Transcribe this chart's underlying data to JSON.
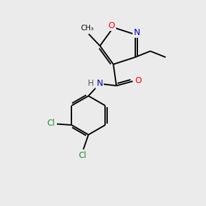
{
  "background_color": "#ebebeb",
  "bond_color": "#000000",
  "atom_colors": {
    "O": "#ff0000",
    "N": "#0000cc",
    "Cl": "#228b22",
    "C": "#000000",
    "H": "#555555"
  },
  "figsize": [
    3.0,
    3.0
  ],
  "dpi": 100,
  "lw": 1.4
}
